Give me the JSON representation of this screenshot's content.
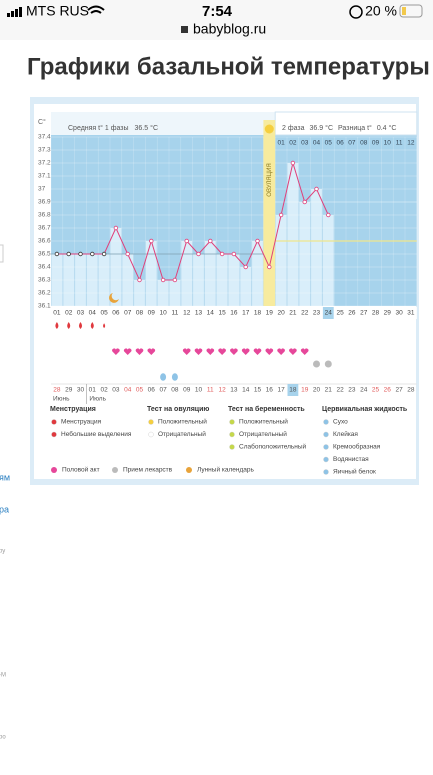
{
  "status_bar": {
    "carrier": "MTS RUS",
    "time": "7:54",
    "battery": "20 %"
  },
  "url": "babyblog.ru",
  "page_title": "Графики базальной температуры",
  "side_fragments": [
    "ям",
    "ра",
    "ру",
    "-М",
    "ро"
  ],
  "chart_data": {
    "type": "line",
    "y_unit": "C°",
    "phase1": {
      "label": "Средняя t° 1 фазы",
      "value": 36.5,
      "unit": "°C"
    },
    "phase2": {
      "label": "2 фаза",
      "value": 36.9,
      "unit": "°C"
    },
    "difference": {
      "label": "Разница t°",
      "value": 0.4,
      "unit": "°C"
    },
    "ovulation_label": "ОВУЛЯЦИЯ",
    "ovulation_day": 19,
    "cover_line": 36.6,
    "phase2_days": [
      "01",
      "02",
      "03",
      "04",
      "05",
      "06",
      "07",
      "08",
      "09",
      "10",
      "11",
      "12"
    ],
    "categories": [
      "01",
      "02",
      "03",
      "04",
      "05",
      "06",
      "07",
      "08",
      "09",
      "10",
      "11",
      "12",
      "13",
      "14",
      "15",
      "16",
      "17",
      "18",
      "19",
      "20",
      "21",
      "22",
      "23",
      "24",
      "25",
      "26",
      "27",
      "28",
      "29",
      "30",
      "31"
    ],
    "values": [
      36.5,
      36.5,
      36.5,
      36.5,
      36.5,
      36.7,
      36.5,
      36.3,
      36.6,
      36.3,
      36.3,
      36.6,
      36.5,
      36.6,
      36.5,
      36.5,
      36.4,
      36.6,
      36.4,
      36.8,
      37.2,
      36.9,
      37.0,
      36.8,
      null,
      null,
      null,
      null,
      null,
      null,
      null
    ],
    "color": "#e0407a",
    "ylim": [
      36.1,
      37.4
    ],
    "yticks": [
      36.1,
      36.2,
      36.3,
      36.4,
      36.5,
      36.6,
      36.7,
      36.8,
      36.9,
      37.0,
      37.1,
      37.2,
      37.3,
      37.4
    ],
    "dates": [
      "28",
      "29",
      "30",
      "01",
      "02",
      "03",
      "04",
      "05",
      "06",
      "07",
      "08",
      "09",
      "10",
      "11",
      "12",
      "13",
      "14",
      "15",
      "16",
      "17",
      "18",
      "19",
      "20",
      "21",
      "22",
      "23",
      "24",
      "25",
      "26",
      "27",
      "28"
    ],
    "months": [
      "Июнь",
      "Июль"
    ]
  },
  "legend": {
    "menstruation": {
      "title": "Менструация",
      "items": [
        "Менструация",
        "Небольшие выделения"
      ]
    },
    "ovulation_test": {
      "title": "Тест на овуляцию",
      "items": [
        "Положительный",
        "Отрицательный"
      ]
    },
    "pregnancy_test": {
      "title": "Тест на беременность",
      "items": [
        "Положительный",
        "Отрицательный",
        "Слабоположительный"
      ]
    },
    "cervical": {
      "title": "Цервикальная жидкость",
      "items": [
        "Сухо",
        "Клейкая",
        "Кремообразная",
        "Водянистая",
        "Яичный белок"
      ]
    },
    "bottom": [
      "Половой акт",
      "Прием лекарств",
      "Лунный календарь"
    ]
  }
}
